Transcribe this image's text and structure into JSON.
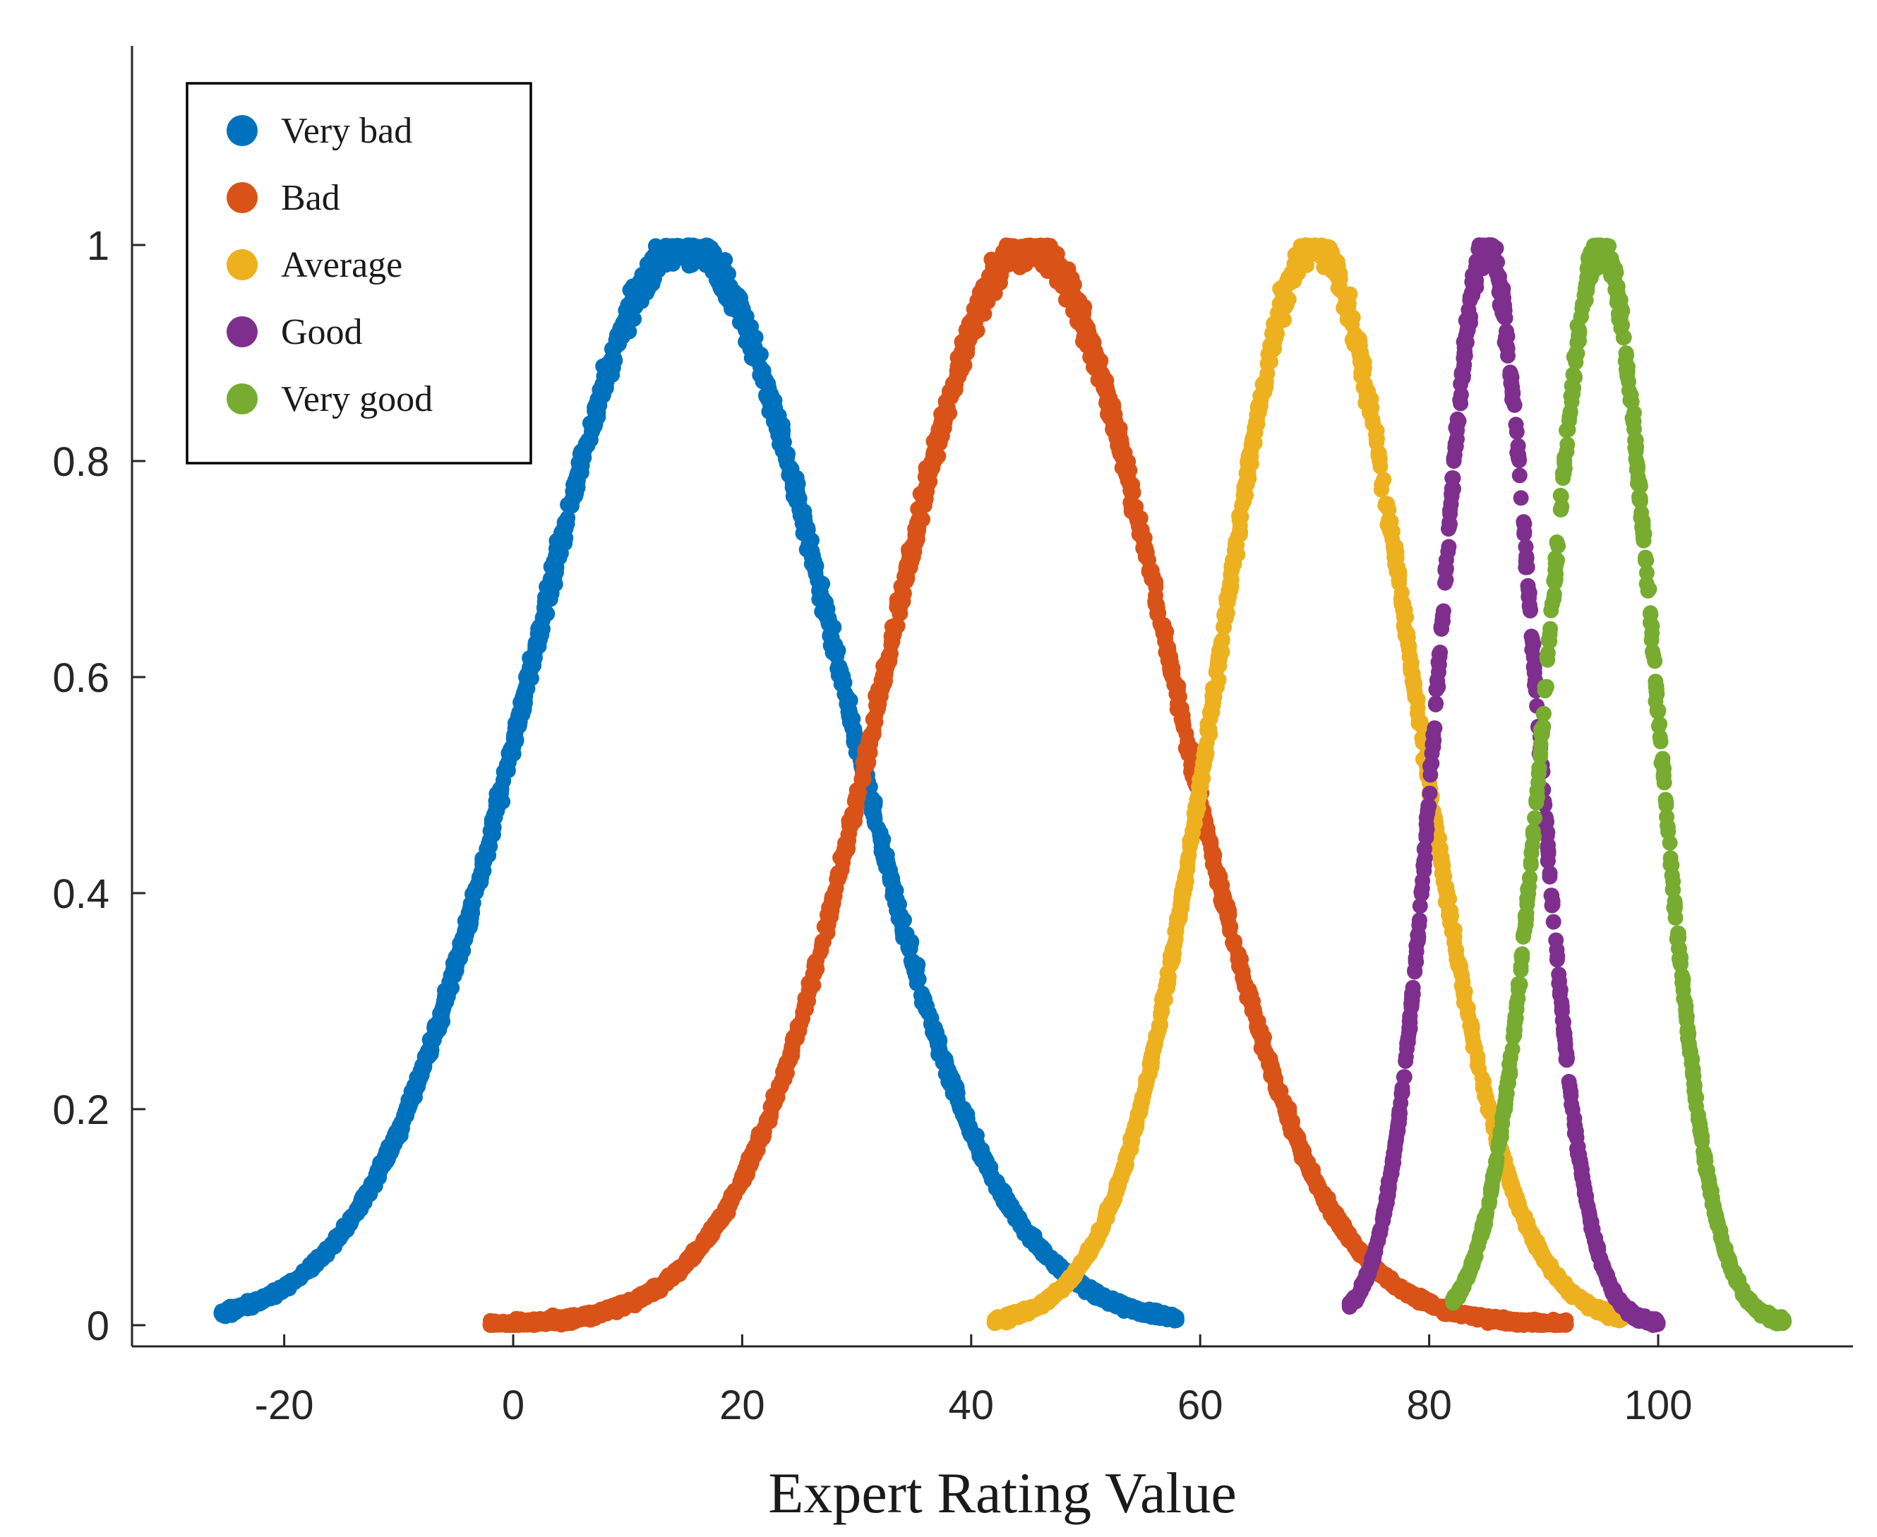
{
  "chart_data": {
    "type": "scatter",
    "title": "",
    "xlabel": "Expert Rating Value",
    "ylabel": "",
    "xlim": [
      -33,
      117
    ],
    "ylim": [
      -0.02,
      1.2
    ],
    "xticks": [
      -20,
      0,
      20,
      40,
      60,
      80,
      100
    ],
    "xtick_labels": [
      "-20",
      "0",
      "20",
      "40",
      "60",
      "80",
      "100"
    ],
    "yticks": [
      0,
      0.2,
      0.4,
      0.6,
      0.8,
      1
    ],
    "ytick_labels": [
      "0",
      "0.2",
      "0.4",
      "0.6",
      "0.8",
      "1"
    ],
    "legend_position": "top-left",
    "grid": false,
    "series": [
      {
        "name": "Very bad",
        "color": "#0072BD",
        "mean": 15,
        "sigma": 13.5,
        "x_range": [
          -25.5,
          58
        ],
        "peak": 1
      },
      {
        "name": "Bad",
        "color": "#D95319",
        "mean": 45,
        "sigma": 12.5,
        "x_range": [
          -2,
          92
        ],
        "peak": 1
      },
      {
        "name": "Average",
        "color": "#EDB120",
        "mean": 70,
        "sigma": 8.5,
        "x_range": [
          42,
          97
        ],
        "peak": 1
      },
      {
        "name": "Good",
        "color": "#7E2F8E",
        "mean": 85,
        "sigma": 4.2,
        "x_range": [
          73,
          100
        ],
        "peak": 1
      },
      {
        "name": "Very good",
        "color": "#77AC30",
        "mean": 95,
        "sigma": 4.7,
        "x_range": [
          82,
          111
        ],
        "peak": 1
      }
    ]
  }
}
